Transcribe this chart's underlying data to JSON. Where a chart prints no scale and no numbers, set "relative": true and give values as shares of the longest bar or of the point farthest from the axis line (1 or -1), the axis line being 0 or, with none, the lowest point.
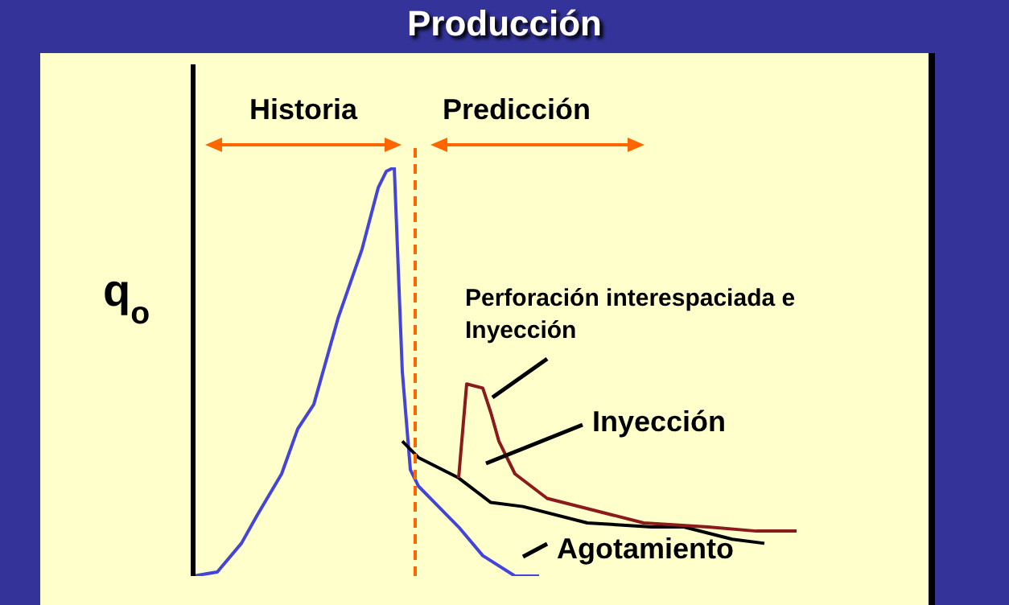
{
  "chart_data": {
    "type": "line",
    "title": "Producción",
    "ylabel": "q$_{o}$",
    "relative": true,
    "marker": "none",
    "categories": [
      null,
      null,
      null,
      null,
      null,
      null,
      null,
      null,
      null,
      null,
      null,
      null,
      null,
      null,
      null,
      null,
      null,
      null,
      null,
      null,
      null,
      null,
      null,
      null,
      null,
      null,
      null,
      null,
      null,
      null,
      null,
      null,
      null,
      null,
      null,
      null,
      null,
      null,
      null,
      null,
      null,
      null,
      null,
      null,
      null,
      null,
      null,
      null,
      null,
      null,
      null,
      null,
      null,
      null,
      null,
      null,
      null,
      null,
      null,
      null,
      null,
      null,
      null,
      null,
      null,
      null,
      null,
      null,
      null,
      null,
      null,
      null,
      null,
      null,
      null,
      null
    ],
    "series": [
      {
        "color": "#4444dd",
        "values": [
          0,
          null,
          null,
          0.01,
          null,
          null,
          0.08,
          null,
          0.15,
          null,
          null,
          0.25,
          null,
          0.36,
          null,
          0.42,
          null,
          null,
          0.63,
          null,
          null,
          0.8,
          null,
          0.95,
          0.99,
          1,
          0.5,
          0.26,
          0.22,
          null,
          0.18,
          null,
          null,
          0.12,
          null,
          null,
          0.05,
          null,
          null,
          null,
          0,
          null,
          null,
          0,
          null,
          null,
          null,
          null,
          null,
          null,
          null,
          null,
          null,
          null,
          null,
          null,
          null,
          null,
          null,
          null,
          null,
          null,
          null,
          null,
          null,
          null,
          null,
          null,
          null,
          null,
          null,
          null,
          null,
          null,
          null,
          null
        ]
      },
      {
        "color": "#000000",
        "values": [
          null,
          null,
          null,
          null,
          null,
          null,
          null,
          null,
          null,
          null,
          null,
          null,
          null,
          null,
          null,
          null,
          null,
          null,
          null,
          null,
          null,
          null,
          null,
          null,
          null,
          null,
          0.33,
          null,
          0.29,
          null,
          null,
          null,
          null,
          0.24,
          null,
          null,
          null,
          0.18,
          null,
          null,
          null,
          0.17,
          null,
          null,
          null,
          null,
          null,
          null,
          null,
          0.13,
          null,
          null,
          null,
          null,
          null,
          null,
          null,
          0.12,
          null,
          null,
          null,
          0.12,
          null,
          null,
          null,
          null,
          null,
          0.09,
          null,
          null,
          null,
          0.08,
          null,
          null,
          null,
          null
        ]
      },
      {
        "color": "#8b1a1a",
        "values": [
          null,
          null,
          null,
          null,
          null,
          null,
          null,
          null,
          null,
          null,
          null,
          null,
          null,
          null,
          null,
          null,
          null,
          null,
          null,
          null,
          null,
          null,
          null,
          null,
          null,
          null,
          null,
          null,
          null,
          null,
          null,
          null,
          null,
          0.24,
          0.47,
          null,
          0.46,
          0.4,
          0.33,
          null,
          0.25,
          null,
          null,
          null,
          0.19,
          null,
          null,
          null,
          null,
          null,
          0.16,
          null,
          null,
          null,
          null,
          null,
          0.13,
          null,
          null,
          null,
          null,
          null,
          null,
          null,
          0.12,
          null,
          null,
          null,
          null,
          null,
          0.11,
          null,
          null,
          null,
          null,
          0.11
        ]
      }
    ],
    "annotations": [
      "Historia",
      "Predicción",
      "Perforación interespaciada e Inyección",
      "Inyección",
      "Agotamiento"
    ]
  }
}
